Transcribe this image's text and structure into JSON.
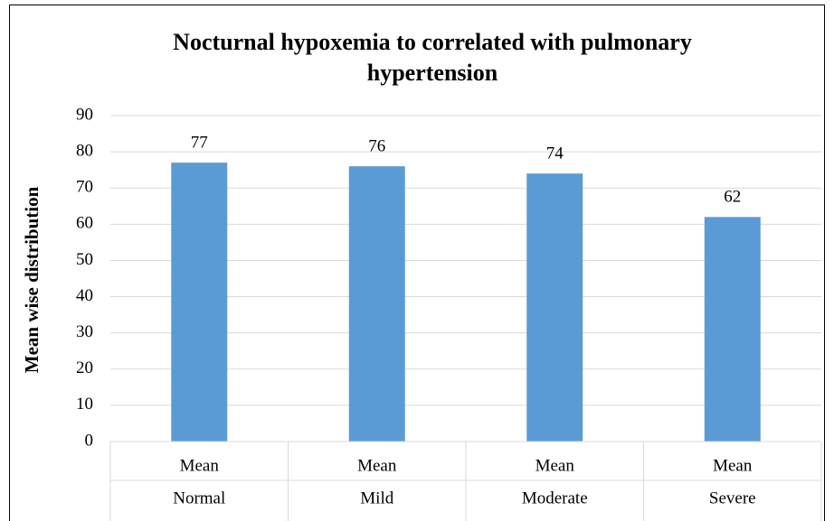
{
  "chart_data": {
    "type": "bar",
    "title": "Nocturnal hypoxemia to correlated with pulmonary hypertension",
    "y_label": "Mean wise distribution",
    "categories": [
      "Mean",
      "Mean",
      "Mean",
      "Mean"
    ],
    "groups": [
      "Normal",
      "Mild",
      "Moderate",
      "Severe"
    ],
    "values": [
      77,
      76,
      74,
      62
    ],
    "color": "#5b9bd5",
    "ylim": [
      0,
      90
    ],
    "yticks": [
      0,
      10,
      20,
      30,
      40,
      50,
      60,
      70,
      80,
      90
    ],
    "grid": true
  }
}
